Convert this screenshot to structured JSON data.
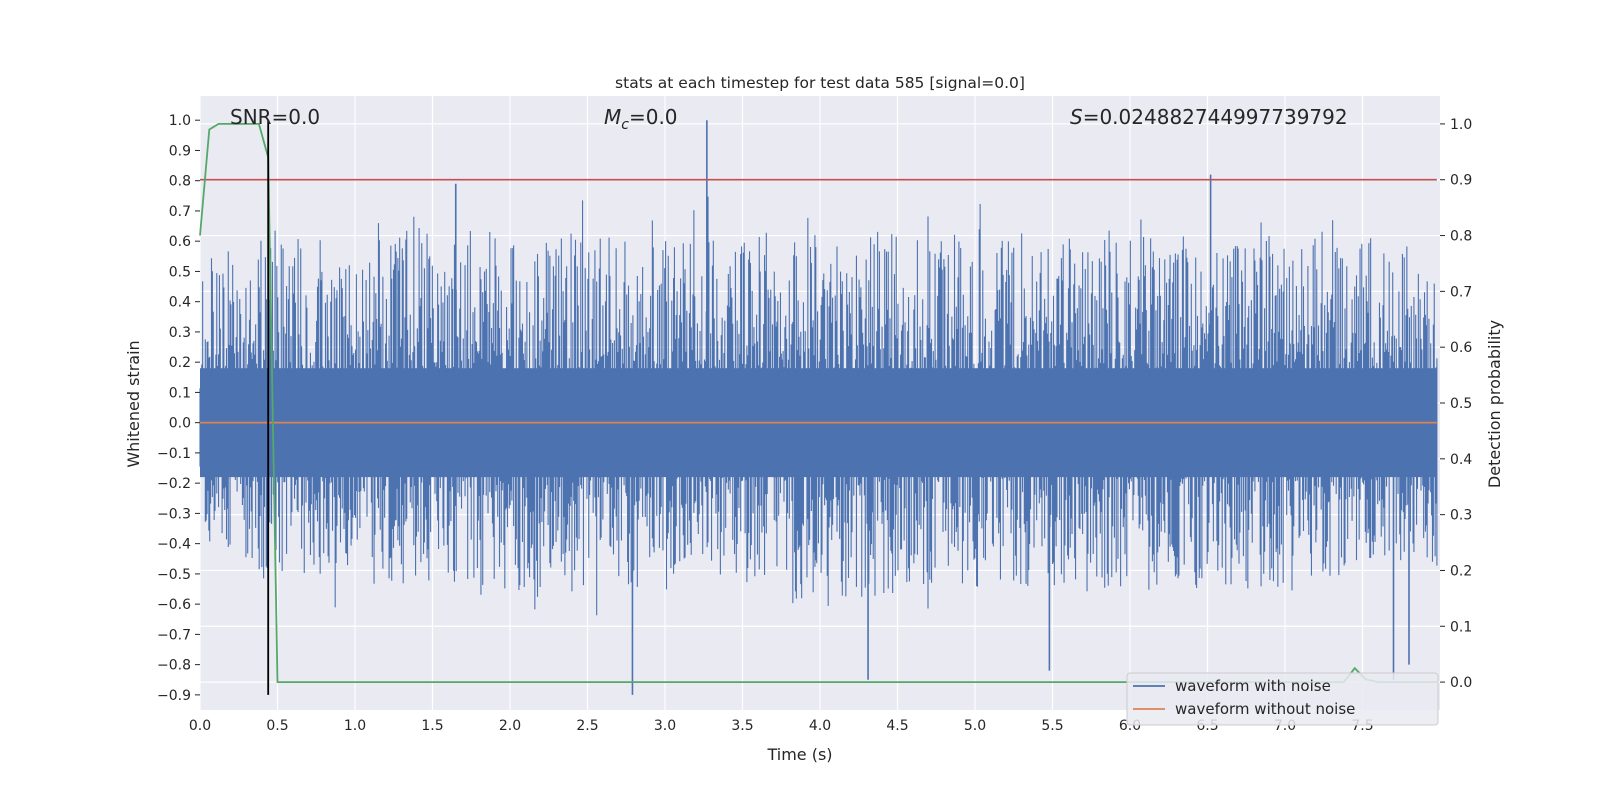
{
  "chart_data": {
    "type": "line",
    "title": "stats at each timestep for test data 585 [signal=0.0]",
    "xlabel": "Time (s)",
    "ylabel": "Whitened strain",
    "y2label": "Detection probability",
    "xlim": [
      0.0,
      8.0
    ],
    "ylim": [
      -0.95,
      1.08
    ],
    "y2lim": [
      -0.05,
      1.05
    ],
    "x_ticks": [
      "0.0",
      "0.5",
      "1.0",
      "1.5",
      "2.0",
      "2.5",
      "3.0",
      "3.5",
      "4.0",
      "4.5",
      "5.0",
      "5.5",
      "6.0",
      "6.5",
      "7.0",
      "7.5"
    ],
    "y_ticks": [
      "1.0",
      "0.9",
      "0.8",
      "0.7",
      "0.6",
      "0.5",
      "0.4",
      "0.3",
      "0.2",
      "0.1",
      "0.0",
      "−0.1",
      "−0.2",
      "−0.3",
      "−0.4",
      "−0.5",
      "−0.6",
      "−0.7",
      "−0.8",
      "−0.9"
    ],
    "y2_ticks": [
      "1.0",
      "0.9",
      "0.8",
      "0.7",
      "0.6",
      "0.5",
      "0.4",
      "0.3",
      "0.2",
      "0.1",
      "0.0"
    ],
    "annotations": {
      "snr": "SNR=0.0",
      "mc_symbol": "M",
      "mc_subscript": "c",
      "mc_value": "=0.0",
      "s_symbol": "S",
      "s_value": "=0.024882744997739792"
    },
    "legend": {
      "placement": "lower-right",
      "entries": [
        "waveform with noise",
        "waveform without noise"
      ]
    },
    "colors": {
      "noise": "#4c72b0",
      "clean": "#dd8452",
      "probability": "#55a868",
      "threshold": "#c44e52",
      "marker": "#000000",
      "axes_bg": "#eaeaf2",
      "grid": "#ffffff"
    },
    "series": [
      {
        "name": "waveform with noise",
        "axis": "left",
        "envelope_points": [
          {
            "t": 0.0,
            "hi": 0.55,
            "lo": -0.45
          },
          {
            "t": 0.5,
            "hi": 0.62,
            "lo": -0.5
          },
          {
            "t": 1.0,
            "hi": 0.6,
            "lo": -0.55
          },
          {
            "t": 1.5,
            "hi": 0.68,
            "lo": -0.52
          },
          {
            "t": 2.0,
            "hi": 0.6,
            "lo": -0.6
          },
          {
            "t": 2.5,
            "hi": 0.64,
            "lo": -0.55
          },
          {
            "t": 3.0,
            "hi": 0.62,
            "lo": -0.55
          },
          {
            "t": 3.5,
            "hi": 0.66,
            "lo": -0.52
          },
          {
            "t": 4.0,
            "hi": 0.62,
            "lo": -0.62
          },
          {
            "t": 4.5,
            "hi": 0.64,
            "lo": -0.56
          },
          {
            "t": 5.0,
            "hi": 0.62,
            "lo": -0.55
          },
          {
            "t": 5.5,
            "hi": 0.7,
            "lo": -0.56
          },
          {
            "t": 6.0,
            "hi": 0.62,
            "lo": -0.56
          },
          {
            "t": 6.5,
            "hi": 0.62,
            "lo": -0.55
          },
          {
            "t": 7.0,
            "hi": 0.68,
            "lo": -0.56
          },
          {
            "t": 7.5,
            "hi": 0.62,
            "lo": -0.5
          },
          {
            "t": 7.98,
            "hi": 0.65,
            "lo": -0.5
          }
        ],
        "peaks": [
          {
            "t": 3.27,
            "value": 1.0
          },
          {
            "t": 1.65,
            "value": 0.79
          },
          {
            "t": 6.52,
            "value": 0.82
          },
          {
            "t": 2.79,
            "value": -0.9
          },
          {
            "t": 4.31,
            "value": -0.85
          },
          {
            "t": 7.7,
            "value": -0.85
          },
          {
            "t": 5.48,
            "value": -0.82
          },
          {
            "t": 7.8,
            "value": -0.8
          }
        ]
      },
      {
        "name": "waveform without noise",
        "axis": "left",
        "x": [
          0.0,
          7.98
        ],
        "y": [
          0.0,
          0.0
        ]
      },
      {
        "name": "detection probability",
        "axis": "right",
        "x": [
          0.0,
          0.06,
          0.12,
          0.38,
          0.44,
          0.5,
          7.38,
          7.45,
          7.52,
          7.6,
          7.98
        ],
        "y": [
          0.8,
          0.99,
          1.0,
          1.0,
          0.94,
          0.0,
          0.0,
          0.025,
          0.005,
          0.0,
          0.0
        ]
      }
    ],
    "threshold": {
      "axis": "right",
      "value": 0.9
    },
    "marker_line": {
      "x": 0.44,
      "y_from": -0.9,
      "y_to": 1.0
    }
  }
}
